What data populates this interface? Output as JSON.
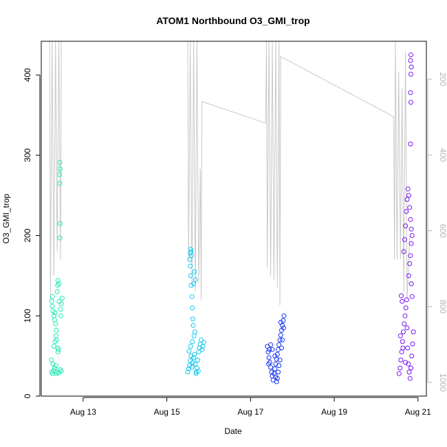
{
  "chart_data": {
    "type": "scatter",
    "title": "ATOM1 Northbound O3_GMI_trop",
    "xlabel": "Date",
    "ylabel": "O3_GMI_trop",
    "xlim_days": [
      12.0,
      21.2
    ],
    "ylim": [
      0,
      442
    ],
    "x_ticks": [
      {
        "day": 13,
        "label": "Aug 13"
      },
      {
        "day": 15,
        "label": "Aug 15"
      },
      {
        "day": 17,
        "label": "Aug 17"
      },
      {
        "day": 19,
        "label": "Aug 19"
      },
      {
        "day": 21,
        "label": "Aug 21"
      }
    ],
    "y_ticks": [
      0,
      100,
      200,
      300,
      400
    ],
    "y2_ticks": [
      200,
      400,
      600,
      800,
      1000
    ],
    "y2_note": "secondary axis: pressure (hPa), reversed, grey",
    "colors": {
      "altitude_line": "#c8c8c8",
      "flight1": "#1ee8b4",
      "flight2": "#14c8f0",
      "flight3": "#1432f0",
      "flight4": "#7814f0",
      "right_axis": "#b4b4b4"
    },
    "series": [
      {
        "values": [
          {
            "x": 12.25,
            "y": 30
          },
          {
            "x": 12.27,
            "y": 28
          },
          {
            "x": 12.3,
            "y": 32
          },
          {
            "x": 12.32,
            "y": 35
          },
          {
            "x": 12.24,
            "y": 45
          },
          {
            "x": 12.28,
            "y": 40
          },
          {
            "x": 12.35,
            "y": 38
          },
          {
            "x": 12.38,
            "y": 30
          },
          {
            "x": 12.42,
            "y": 29
          },
          {
            "x": 12.45,
            "y": 33
          },
          {
            "x": 12.48,
            "y": 31
          },
          {
            "x": 12.36,
            "y": 28
          },
          {
            "x": 12.3,
            "y": 62
          },
          {
            "x": 12.33,
            "y": 68
          },
          {
            "x": 12.35,
            "y": 75
          },
          {
            "x": 12.36,
            "y": 82
          },
          {
            "x": 12.34,
            "y": 90
          },
          {
            "x": 12.32,
            "y": 95
          },
          {
            "x": 12.3,
            "y": 100
          },
          {
            "x": 12.28,
            "y": 106
          },
          {
            "x": 12.26,
            "y": 112
          },
          {
            "x": 12.25,
            "y": 118
          },
          {
            "x": 12.27,
            "y": 124
          },
          {
            "x": 12.37,
            "y": 70
          },
          {
            "x": 12.39,
            "y": 60
          },
          {
            "x": 12.4,
            "y": 55
          },
          {
            "x": 12.41,
            "y": 58
          },
          {
            "x": 12.33,
            "y": 104
          },
          {
            "x": 12.38,
            "y": 130
          },
          {
            "x": 12.39,
            "y": 138
          },
          {
            "x": 12.4,
            "y": 144
          },
          {
            "x": 12.42,
            "y": 140
          },
          {
            "x": 12.46,
            "y": 108
          },
          {
            "x": 12.48,
            "y": 115
          },
          {
            "x": 12.5,
            "y": 122
          },
          {
            "x": 12.47,
            "y": 100
          },
          {
            "x": 12.43,
            "y": 118
          },
          {
            "x": 12.44,
            "y": 197
          },
          {
            "x": 12.45,
            "y": 215
          },
          {
            "x": 12.44,
            "y": 265
          },
          {
            "x": 12.44,
            "y": 276
          },
          {
            "x": 12.45,
            "y": 283
          },
          {
            "x": 12.44,
            "y": 291
          }
        ]
      },
      {
        "values": [
          {
            "x": 15.5,
            "y": 30
          },
          {
            "x": 15.52,
            "y": 34
          },
          {
            "x": 15.54,
            "y": 38
          },
          {
            "x": 15.56,
            "y": 44
          },
          {
            "x": 15.58,
            "y": 50
          },
          {
            "x": 15.6,
            "y": 36
          },
          {
            "x": 15.62,
            "y": 42
          },
          {
            "x": 15.64,
            "y": 48
          },
          {
            "x": 15.66,
            "y": 52
          },
          {
            "x": 15.68,
            "y": 40
          },
          {
            "x": 15.7,
            "y": 30
          },
          {
            "x": 15.72,
            "y": 35
          },
          {
            "x": 15.74,
            "y": 45
          },
          {
            "x": 15.76,
            "y": 55
          },
          {
            "x": 15.78,
            "y": 60
          },
          {
            "x": 15.8,
            "y": 65
          },
          {
            "x": 15.82,
            "y": 70
          },
          {
            "x": 15.84,
            "y": 58
          },
          {
            "x": 15.86,
            "y": 62
          },
          {
            "x": 15.88,
            "y": 67
          },
          {
            "x": 15.7,
            "y": 28
          },
          {
            "x": 15.75,
            "y": 31
          },
          {
            "x": 15.53,
            "y": 56
          },
          {
            "x": 15.57,
            "y": 62
          },
          {
            "x": 15.61,
            "y": 68
          },
          {
            "x": 15.63,
            "y": 88
          },
          {
            "x": 15.62,
            "y": 96
          },
          {
            "x": 15.61,
            "y": 110
          },
          {
            "x": 15.6,
            "y": 124
          },
          {
            "x": 15.58,
            "y": 138
          },
          {
            "x": 15.57,
            "y": 150
          },
          {
            "x": 15.56,
            "y": 162
          },
          {
            "x": 15.55,
            "y": 170
          },
          {
            "x": 15.56,
            "y": 178
          },
          {
            "x": 15.57,
            "y": 183
          },
          {
            "x": 15.58,
            "y": 180
          },
          {
            "x": 15.59,
            "y": 175
          },
          {
            "x": 15.64,
            "y": 140
          },
          {
            "x": 15.66,
            "y": 155
          },
          {
            "x": 15.68,
            "y": 145
          },
          {
            "x": 15.65,
            "y": 75
          },
          {
            "x": 15.67,
            "y": 80
          }
        ]
      },
      {
        "values": [
          {
            "x": 17.4,
            "y": 62
          },
          {
            "x": 17.42,
            "y": 55
          },
          {
            "x": 17.44,
            "y": 48
          },
          {
            "x": 17.46,
            "y": 42
          },
          {
            "x": 17.48,
            "y": 36
          },
          {
            "x": 17.5,
            "y": 30
          },
          {
            "x": 17.52,
            "y": 25
          },
          {
            "x": 17.54,
            "y": 20
          },
          {
            "x": 17.56,
            "y": 28
          },
          {
            "x": 17.58,
            "y": 34
          },
          {
            "x": 17.6,
            "y": 40
          },
          {
            "x": 17.62,
            "y": 46
          },
          {
            "x": 17.64,
            "y": 52
          },
          {
            "x": 17.66,
            "y": 58
          },
          {
            "x": 17.68,
            "y": 64
          },
          {
            "x": 17.7,
            "y": 70
          },
          {
            "x": 17.72,
            "y": 76
          },
          {
            "x": 17.74,
            "y": 82
          },
          {
            "x": 17.76,
            "y": 88
          },
          {
            "x": 17.78,
            "y": 94
          },
          {
            "x": 17.8,
            "y": 100
          },
          {
            "x": 17.74,
            "y": 60
          },
          {
            "x": 17.7,
            "y": 45
          },
          {
            "x": 17.66,
            "y": 30
          },
          {
            "x": 17.64,
            "y": 22
          },
          {
            "x": 17.62,
            "y": 18
          },
          {
            "x": 17.6,
            "y": 24
          },
          {
            "x": 17.58,
            "y": 50
          },
          {
            "x": 17.52,
            "y": 58
          },
          {
            "x": 17.48,
            "y": 64
          },
          {
            "x": 17.45,
            "y": 58
          },
          {
            "x": 17.43,
            "y": 40
          },
          {
            "x": 17.76,
            "y": 70
          },
          {
            "x": 17.79,
            "y": 85
          },
          {
            "x": 17.72,
            "y": 92
          },
          {
            "x": 17.68,
            "y": 38
          }
        ]
      },
      {
        "values": [
          {
            "x": 20.55,
            "y": 28
          },
          {
            "x": 20.57,
            "y": 35
          },
          {
            "x": 20.59,
            "y": 45
          },
          {
            "x": 20.61,
            "y": 55
          },
          {
            "x": 20.63,
            "y": 68
          },
          {
            "x": 20.65,
            "y": 80
          },
          {
            "x": 20.67,
            "y": 90
          },
          {
            "x": 20.69,
            "y": 100
          },
          {
            "x": 20.71,
            "y": 110
          },
          {
            "x": 20.73,
            "y": 120
          },
          {
            "x": 20.6,
            "y": 125
          },
          {
            "x": 20.62,
            "y": 118
          },
          {
            "x": 20.75,
            "y": 60
          },
          {
            "x": 20.77,
            "y": 40
          },
          {
            "x": 20.79,
            "y": 30
          },
          {
            "x": 20.81,
            "y": 22
          },
          {
            "x": 20.83,
            "y": 35
          },
          {
            "x": 20.85,
            "y": 50
          },
          {
            "x": 20.87,
            "y": 65
          },
          {
            "x": 20.89,
            "y": 80
          },
          {
            "x": 20.78,
            "y": 150
          },
          {
            "x": 20.8,
            "y": 165
          },
          {
            "x": 20.82,
            "y": 175
          },
          {
            "x": 20.84,
            "y": 190
          },
          {
            "x": 20.86,
            "y": 200
          },
          {
            "x": 20.84,
            "y": 208
          },
          {
            "x": 20.82,
            "y": 220
          },
          {
            "x": 20.8,
            "y": 235
          },
          {
            "x": 20.78,
            "y": 250
          },
          {
            "x": 20.76,
            "y": 258
          },
          {
            "x": 20.74,
            "y": 245
          },
          {
            "x": 20.72,
            "y": 230
          },
          {
            "x": 20.7,
            "y": 212
          },
          {
            "x": 20.68,
            "y": 195
          },
          {
            "x": 20.66,
            "y": 180
          },
          {
            "x": 20.86,
            "y": 124
          },
          {
            "x": 20.84,
            "y": 140
          },
          {
            "x": 20.82,
            "y": 314
          },
          {
            "x": 20.83,
            "y": 366
          },
          {
            "x": 20.82,
            "y": 378
          },
          {
            "x": 20.83,
            "y": 401
          },
          {
            "x": 20.84,
            "y": 410
          },
          {
            "x": 20.82,
            "y": 418
          },
          {
            "x": 20.83,
            "y": 425
          },
          {
            "x": 20.58,
            "y": 75
          },
          {
            "x": 20.64,
            "y": 60
          },
          {
            "x": 20.7,
            "y": 42
          },
          {
            "x": 20.74,
            "y": 85
          }
        ]
      }
    ],
    "altitude_line": [
      {
        "x": 12.2,
        "y": 442
      },
      {
        "x": 12.22,
        "y": 120
      },
      {
        "x": 12.26,
        "y": 442
      },
      {
        "x": 12.3,
        "y": 150
      },
      {
        "x": 12.34,
        "y": 442
      },
      {
        "x": 12.38,
        "y": 180
      },
      {
        "x": 12.42,
        "y": 442
      },
      {
        "x": 12.46,
        "y": 170
      },
      {
        "x": 12.48,
        "y": 442
      },
      {
        "x": 15.5,
        "y": 442
      },
      {
        "x": 15.52,
        "y": 170
      },
      {
        "x": 15.56,
        "y": 442
      },
      {
        "x": 15.6,
        "y": 140
      },
      {
        "x": 15.64,
        "y": 442
      },
      {
        "x": 15.68,
        "y": 130
      },
      {
        "x": 15.72,
        "y": 442
      },
      {
        "x": 15.76,
        "y": 140
      },
      {
        "x": 15.8,
        "y": 283
      },
      {
        "x": 15.82,
        "y": 120
      },
      {
        "x": 15.84,
        "y": 367
      },
      {
        "x": 17.36,
        "y": 340
      },
      {
        "x": 17.38,
        "y": 442
      },
      {
        "x": 17.4,
        "y": 160
      },
      {
        "x": 17.44,
        "y": 442
      },
      {
        "x": 17.48,
        "y": 150
      },
      {
        "x": 17.52,
        "y": 442
      },
      {
        "x": 17.56,
        "y": 145
      },
      {
        "x": 17.6,
        "y": 442
      },
      {
        "x": 17.64,
        "y": 135
      },
      {
        "x": 17.68,
        "y": 442
      },
      {
        "x": 17.7,
        "y": 113
      },
      {
        "x": 17.72,
        "y": 423
      },
      {
        "x": 20.42,
        "y": 348
      },
      {
        "x": 20.44,
        "y": 170
      },
      {
        "x": 20.46,
        "y": 442
      },
      {
        "x": 20.5,
        "y": 170
      },
      {
        "x": 20.54,
        "y": 404
      },
      {
        "x": 20.58,
        "y": 170
      },
      {
        "x": 20.62,
        "y": 383
      },
      {
        "x": 20.66,
        "y": 130
      },
      {
        "x": 20.7,
        "y": 430
      },
      {
        "x": 20.74,
        "y": 120
      },
      {
        "x": 20.8,
        "y": 200
      }
    ]
  }
}
